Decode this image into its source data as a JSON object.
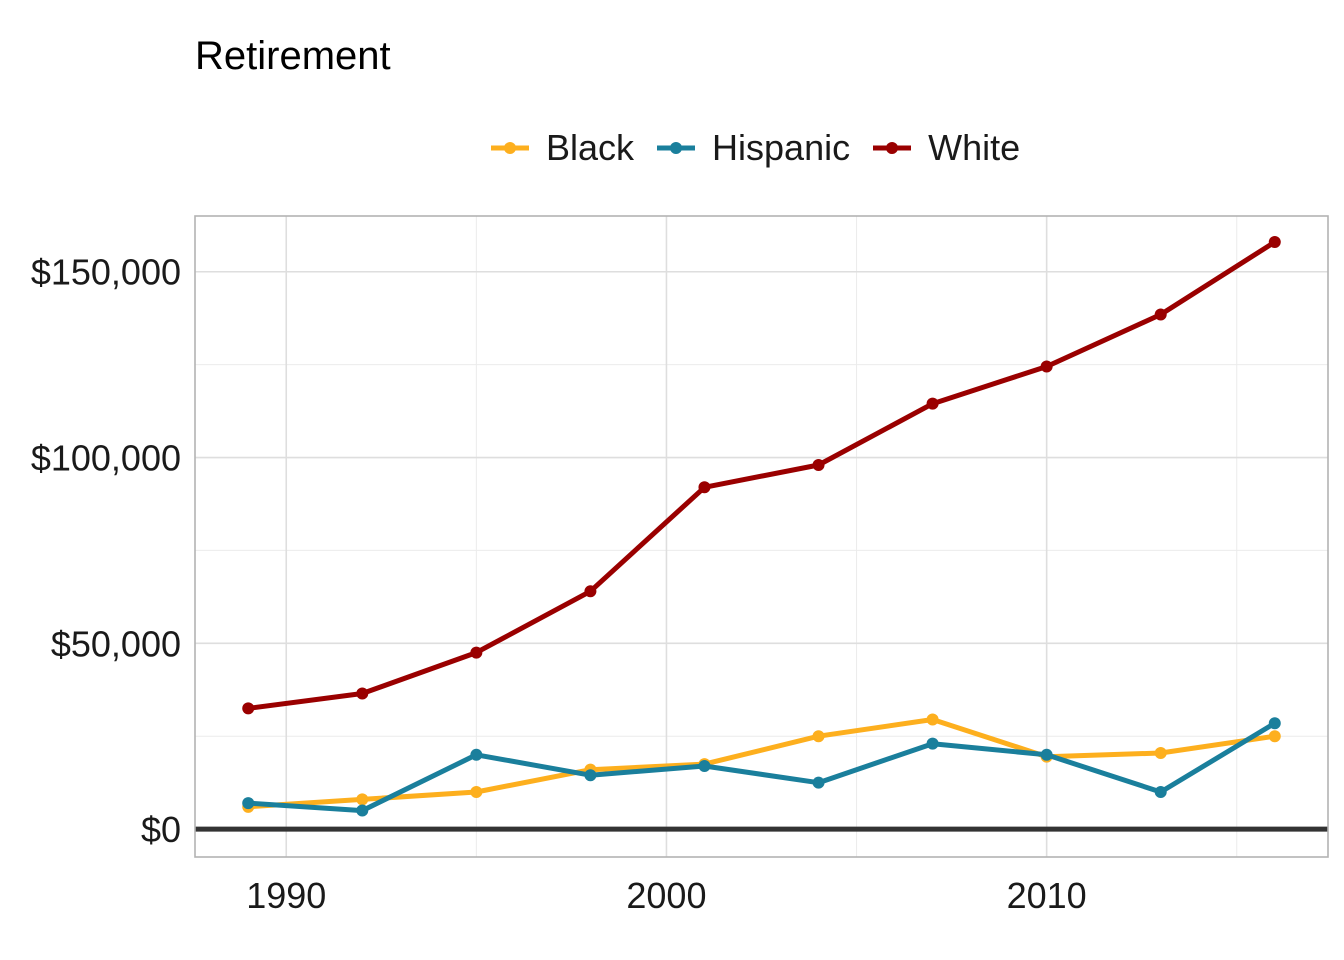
{
  "chart_data": {
    "type": "line",
    "title": "Retirement",
    "xlabel": "",
    "ylabel": "",
    "x": [
      1989,
      1992,
      1995,
      1998,
      2001,
      2004,
      2007,
      2010,
      2013,
      2016
    ],
    "xlim": [
      1987.6,
      2017.4
    ],
    "ylim": [
      -7500,
      165000
    ],
    "x_ticks": [
      {
        "value": 1990,
        "label": "1990"
      },
      {
        "value": 2000,
        "label": "2000"
      },
      {
        "value": 2010,
        "label": "2010"
      }
    ],
    "y_ticks": [
      {
        "value": 0,
        "label": "$0"
      },
      {
        "value": 50000,
        "label": "$50,000"
      },
      {
        "value": 100000,
        "label": "$100,000"
      },
      {
        "value": 150000,
        "label": "$150,000"
      }
    ],
    "grid": true,
    "legend_position": "top",
    "series": [
      {
        "name": "Black",
        "color": "#fdaf1e",
        "values": [
          6000,
          8000,
          10000,
          16000,
          17500,
          25000,
          29500,
          19500,
          20500,
          25000
        ]
      },
      {
        "name": "Hispanic",
        "color": "#1a7f9c",
        "values": [
          7000,
          5000,
          20000,
          14500,
          17000,
          12500,
          23000,
          20000,
          10000,
          28500
        ]
      },
      {
        "name": "White",
        "color": "#9a0000",
        "values": [
          32500,
          36500,
          47500,
          64000,
          92000,
          98000,
          114500,
          124500,
          138500,
          158000
        ]
      }
    ]
  }
}
